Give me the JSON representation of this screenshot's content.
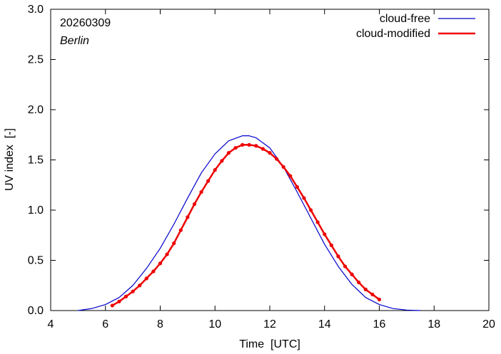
{
  "chart_data": {
    "type": "line",
    "title": "",
    "date_label": "20260309",
    "location_label": "Berlin",
    "xlabel": "Time  [UTC]",
    "ylabel": "UV index  [-]",
    "xlim": [
      4,
      20
    ],
    "ylim": [
      0,
      3.0
    ],
    "x_ticks": [
      4,
      6,
      8,
      10,
      12,
      14,
      16,
      18,
      20
    ],
    "x_tick_labels": [
      "4",
      "6",
      "8",
      "10",
      "12",
      "14",
      "16",
      "18",
      "20"
    ],
    "y_ticks": [
      0,
      0.5,
      1.0,
      1.5,
      2.0,
      2.5,
      3.0
    ],
    "y_tick_labels": [
      "0.0",
      "0.5",
      "1.0",
      "1.5",
      "2.0",
      "2.5",
      "3.0"
    ],
    "grid": false,
    "legend_position": "top-right",
    "series": [
      {
        "name": "cloud-free",
        "color": "#0000cc",
        "markers": false,
        "x": [
          5.0,
          5.5,
          6.0,
          6.5,
          7.0,
          7.5,
          8.0,
          8.5,
          9.0,
          9.5,
          10.0,
          10.5,
          11.0,
          11.25,
          11.5,
          12.0,
          12.5,
          13.0,
          13.5,
          14.0,
          14.5,
          15.0,
          15.5,
          16.0,
          16.5,
          17.0,
          17.5
        ],
        "y": [
          0.0,
          0.02,
          0.06,
          0.13,
          0.25,
          0.42,
          0.62,
          0.86,
          1.12,
          1.37,
          1.56,
          1.69,
          1.74,
          1.74,
          1.72,
          1.62,
          1.43,
          1.18,
          0.92,
          0.66,
          0.44,
          0.26,
          0.13,
          0.06,
          0.02,
          0.005,
          0.0
        ]
      },
      {
        "name": "cloud-modified",
        "color": "#ee0000",
        "markers": true,
        "x": [
          6.25,
          6.5,
          6.75,
          7.0,
          7.25,
          7.5,
          7.75,
          8.0,
          8.25,
          8.5,
          8.75,
          9.0,
          9.25,
          9.5,
          9.75,
          10.0,
          10.25,
          10.5,
          10.75,
          11.0,
          11.25,
          11.5,
          11.75,
          12.0,
          12.25,
          12.5,
          12.75,
          13.0,
          13.25,
          13.5,
          13.75,
          14.0,
          14.25,
          14.5,
          14.75,
          15.0,
          15.25,
          15.5,
          15.75,
          16.0
        ],
        "y": [
          0.05,
          0.09,
          0.14,
          0.19,
          0.25,
          0.32,
          0.39,
          0.47,
          0.56,
          0.67,
          0.8,
          0.93,
          1.06,
          1.18,
          1.29,
          1.4,
          1.49,
          1.57,
          1.62,
          1.65,
          1.65,
          1.64,
          1.61,
          1.57,
          1.51,
          1.43,
          1.34,
          1.23,
          1.12,
          1.0,
          0.88,
          0.76,
          0.65,
          0.54,
          0.44,
          0.36,
          0.28,
          0.21,
          0.16,
          0.11
        ]
      }
    ]
  }
}
